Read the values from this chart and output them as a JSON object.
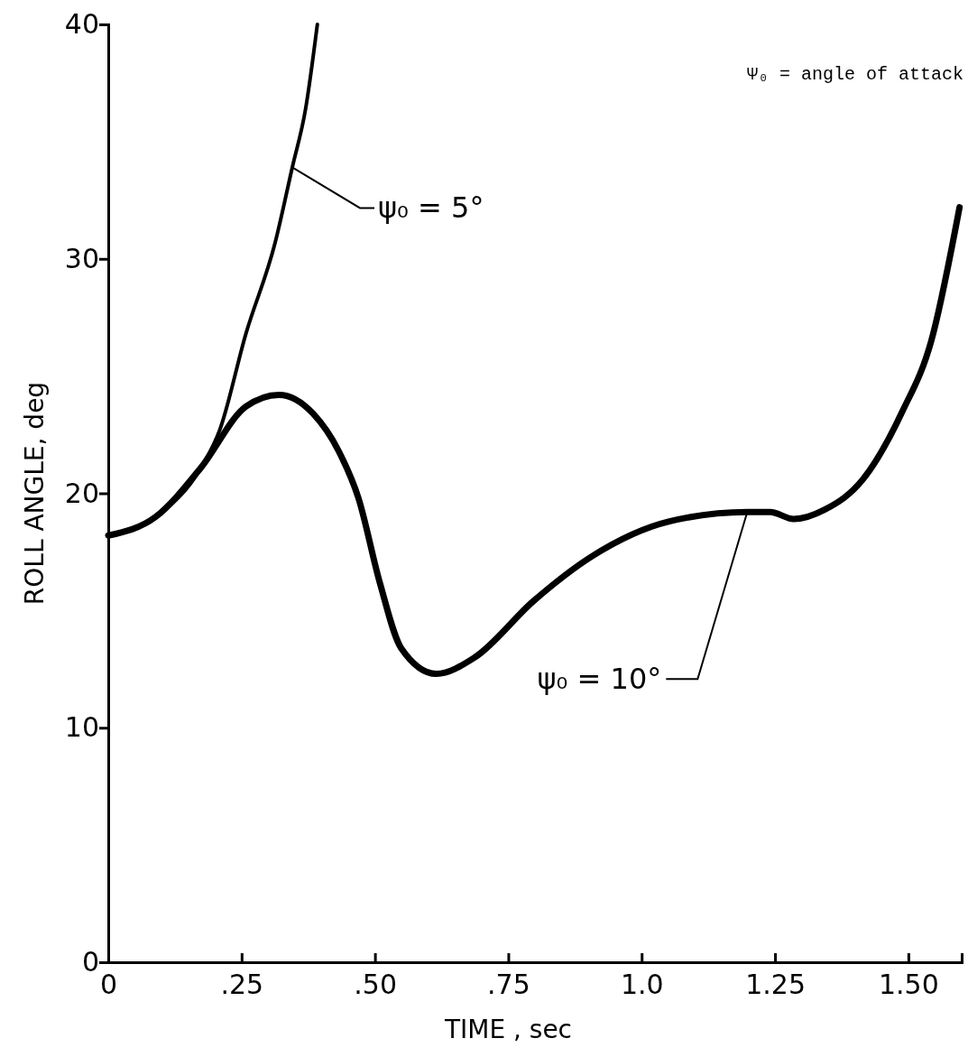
{
  "chart_data": {
    "type": "line",
    "xlabel": "TIME , sec",
    "ylabel": "ROLL ANGLE, deg",
    "xlim": [
      0,
      1.6
    ],
    "ylim": [
      0,
      40
    ],
    "xticks": [
      0,
      {
        "value": 0.25,
        "label": ".25"
      },
      {
        "value": 0.5,
        "label": ".50"
      },
      {
        "value": 0.75,
        "label": ".75"
      },
      {
        "value": 1.0,
        "label": "1.0"
      },
      1.25,
      {
        "value": 1.5,
        "label": "1.50"
      }
    ],
    "yticks": [
      0,
      10,
      20,
      30,
      40
    ],
    "annotations": [
      "Ψ₀ = angle of attack"
    ],
    "series": [
      {
        "name": "ψ₀ = 5°",
        "color": "#000000",
        "x": [
          0,
          0.089,
          0.174,
          0.209,
          0.258,
          0.313,
          0.345,
          0.37,
          0.392
        ],
        "values": [
          18.2,
          19.0,
          21.1,
          22.7,
          26.8,
          30.7,
          33.9,
          36.4,
          40
        ]
      },
      {
        "name": "ψ₀ = 10°",
        "color": "#000000",
        "x": [
          0,
          0.089,
          0.174,
          0.258,
          0.32,
          0.384,
          0.432,
          0.469,
          0.509,
          0.549,
          0.615,
          0.687,
          0.797,
          0.906,
          1.052,
          1.198,
          1.241,
          1.285,
          1.343,
          1.415,
          1.489,
          1.543,
          1.596
        ],
        "values": [
          18.2,
          19.0,
          21.1,
          23.7,
          24.2,
          23.4,
          21.8,
          19.8,
          16.2,
          13.4,
          12.3,
          13.0,
          15.4,
          17.3,
          18.8,
          19.2,
          19.2,
          18.9,
          19.3,
          20.6,
          23.5,
          26.5,
          32.2
        ]
      }
    ]
  }
}
